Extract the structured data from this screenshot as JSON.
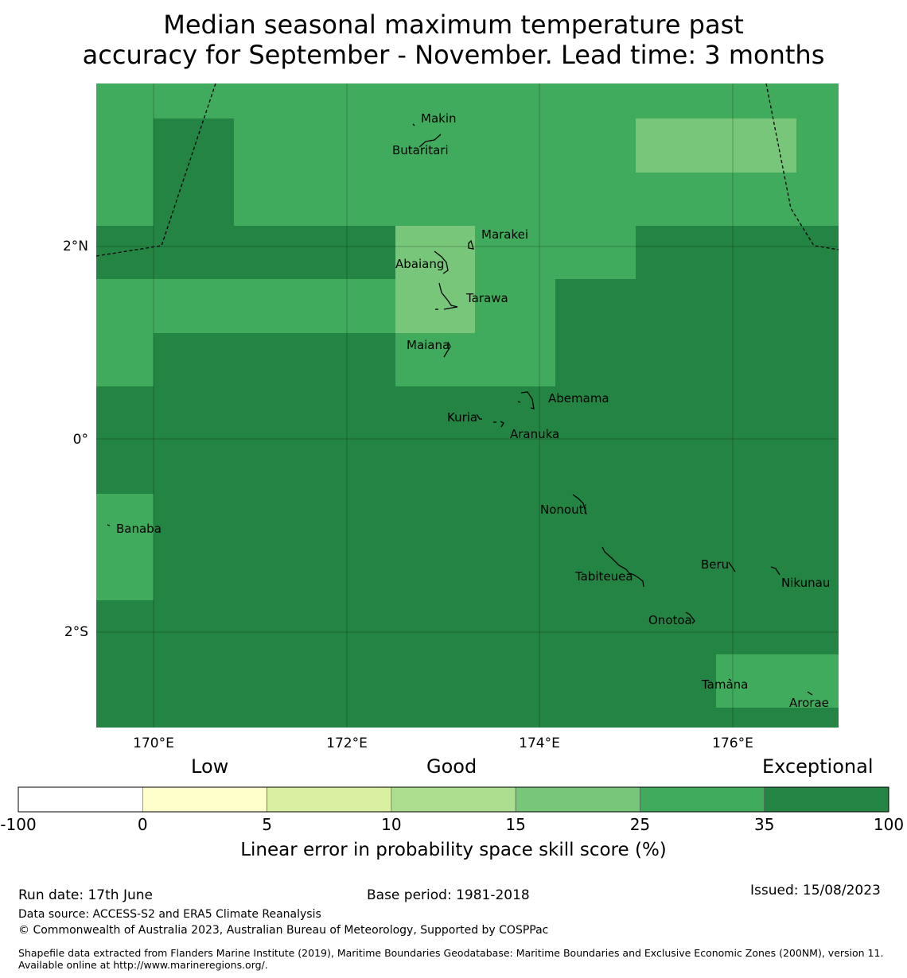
{
  "title": {
    "line1": "Median seasonal maximum temperature past",
    "line2": "accuracy for September - November. Lead time: 3 months"
  },
  "colors": {
    "cat_25_35": "#41ab5d",
    "cat_15_25": "#78c679",
    "cat_35_100": "#238443",
    "boundary": "#000000"
  },
  "map": {
    "lon_ticks": [
      {
        "value": 170,
        "label": "170°E"
      },
      {
        "value": 172,
        "label": "172°E"
      },
      {
        "value": 174,
        "label": "174°E"
      },
      {
        "value": 176,
        "label": "176°E"
      }
    ],
    "lat_ticks": [
      {
        "value": 2,
        "label": "2°N"
      },
      {
        "value": 0,
        "label": "0°"
      },
      {
        "value": -2,
        "label": "2°S"
      }
    ],
    "islands": [
      {
        "name": "Makin"
      },
      {
        "name": "Butaritari"
      },
      {
        "name": "Marakei"
      },
      {
        "name": "Abaiang"
      },
      {
        "name": "Tarawa"
      },
      {
        "name": "Maiana"
      },
      {
        "name": "Abemama"
      },
      {
        "name": "Kuria"
      },
      {
        "name": "Aranuka"
      },
      {
        "name": "Nonouti"
      },
      {
        "name": "Banaba"
      },
      {
        "name": "Tabiteuea"
      },
      {
        "name": "Beru"
      },
      {
        "name": "Nikunau"
      },
      {
        "name": "Onotoa"
      },
      {
        "name": "Tamana"
      },
      {
        "name": "Arorae"
      }
    ]
  },
  "colorbar": {
    "category_labels": [
      "Low",
      "Good",
      "Exceptional"
    ],
    "ticks": [
      "-100",
      "0",
      "5",
      "10",
      "15",
      "25",
      "35",
      "100"
    ],
    "colors": [
      "#ffffff",
      "#ffffcc",
      "#d9f0a3",
      "#addd8e",
      "#78c679",
      "#41ab5d",
      "#238443"
    ],
    "label": "Linear error in probability space skill score (%)"
  },
  "footer": {
    "run_date": "Run date: 17th June",
    "base_period": "Base period: 1981-2018",
    "issued": "Issued: 15/08/2023",
    "data_source": "Data source: ACCESS-S2 and ERA5 Climate Reanalysis",
    "copyright": "© Commonwealth of Australia 2023, Australian Bureau of Meteorology, Supported by COSPPac",
    "shapefile": "Shapefile data extracted from Flanders Marine Institute (2019), Maritime Boundaries Geodatabase: Maritime Boundaries and Exclusive Economic Zones (200NM), version 11. Available online at http://www.marineregions.org/."
  }
}
